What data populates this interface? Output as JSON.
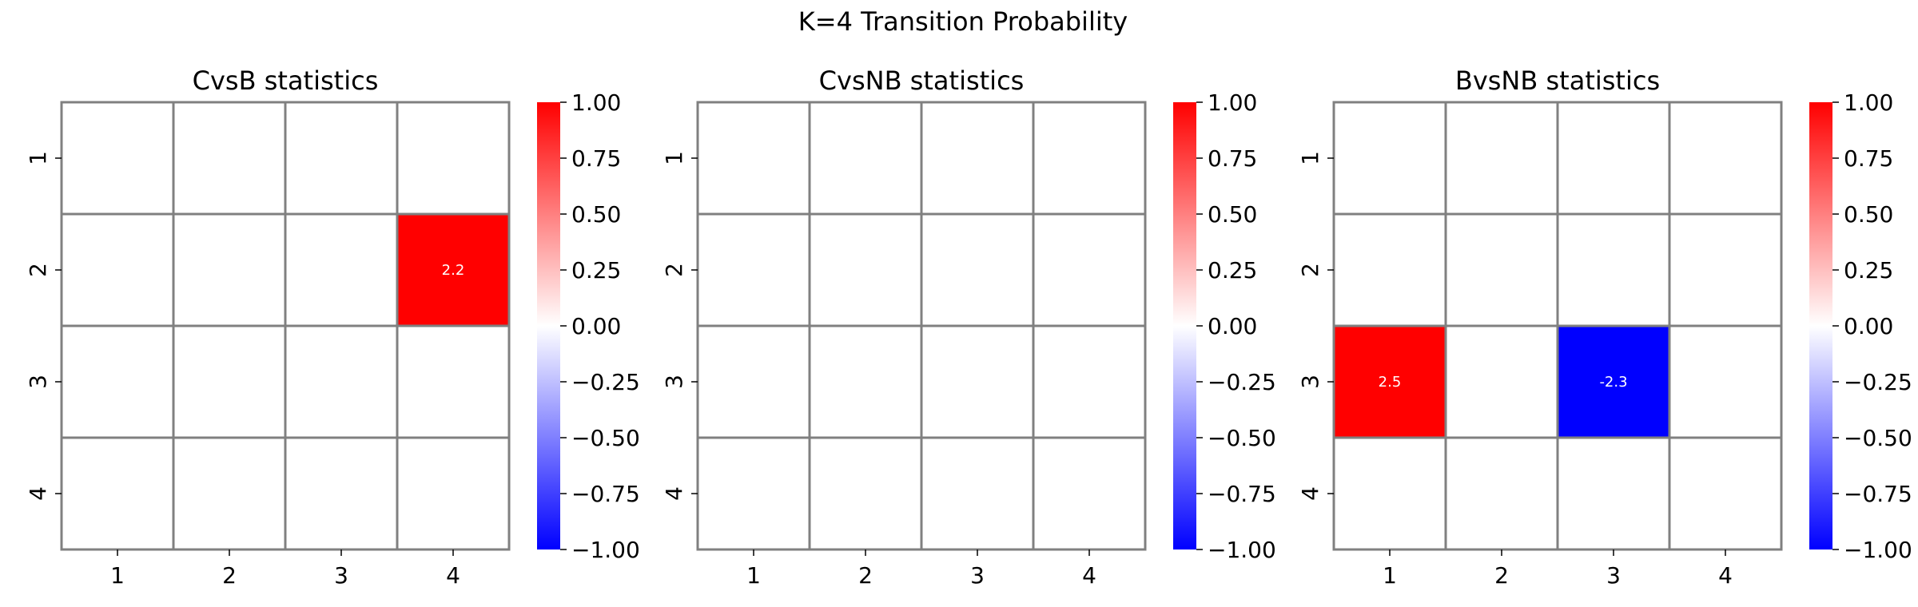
{
  "figure_title": "K=4 Transition Probability",
  "chart_data": [
    {
      "type": "heatmap",
      "title": "CvsB statistics",
      "x_ticks": [
        "1",
        "2",
        "3",
        "4"
      ],
      "y_ticks": [
        "1",
        "2",
        "3",
        "4"
      ],
      "values": [
        [
          0,
          0,
          0,
          0
        ],
        [
          0,
          0,
          0,
          2.2
        ],
        [
          0,
          0,
          0,
          0
        ],
        [
          0,
          0,
          0,
          0
        ]
      ],
      "annotations": [
        {
          "row": 2,
          "col": 4,
          "text": "2.2"
        }
      ],
      "color_range": [
        -1.0,
        1.0
      ],
      "colormap": [
        "#0000ff",
        "#ffffff",
        "#ff0000"
      ],
      "colorbar_ticks": [
        "1.00",
        "0.75",
        "0.50",
        "0.25",
        "0.00",
        "−0.25",
        "−0.50",
        "−0.75",
        "−1.00"
      ]
    },
    {
      "type": "heatmap",
      "title": "CvsNB statistics",
      "x_ticks": [
        "1",
        "2",
        "3",
        "4"
      ],
      "y_ticks": [
        "1",
        "2",
        "3",
        "4"
      ],
      "values": [
        [
          0,
          0,
          0,
          0
        ],
        [
          0,
          0,
          0,
          0
        ],
        [
          0,
          0,
          0,
          0
        ],
        [
          0,
          0,
          0,
          0
        ]
      ],
      "annotations": [],
      "color_range": [
        -1.0,
        1.0
      ],
      "colormap": [
        "#0000ff",
        "#ffffff",
        "#ff0000"
      ],
      "colorbar_ticks": [
        "1.00",
        "0.75",
        "0.50",
        "0.25",
        "0.00",
        "−0.25",
        "−0.50",
        "−0.75",
        "−1.00"
      ]
    },
    {
      "type": "heatmap",
      "title": "BvsNB statistics",
      "x_ticks": [
        "1",
        "2",
        "3",
        "4"
      ],
      "y_ticks": [
        "1",
        "2",
        "3",
        "4"
      ],
      "values": [
        [
          0,
          0,
          0,
          0
        ],
        [
          0,
          0,
          0,
          0
        ],
        [
          2.5,
          0,
          -2.3,
          0
        ],
        [
          0,
          0,
          0,
          0
        ]
      ],
      "annotations": [
        {
          "row": 3,
          "col": 1,
          "text": "2.5"
        },
        {
          "row": 3,
          "col": 3,
          "text": "-2.3"
        }
      ],
      "color_range": [
        -1.0,
        1.0
      ],
      "colormap": [
        "#0000ff",
        "#ffffff",
        "#ff0000"
      ],
      "colorbar_ticks": [
        "1.00",
        "0.75",
        "0.50",
        "0.25",
        "0.00",
        "−0.25",
        "−0.50",
        "−0.75",
        "−1.00"
      ]
    }
  ]
}
